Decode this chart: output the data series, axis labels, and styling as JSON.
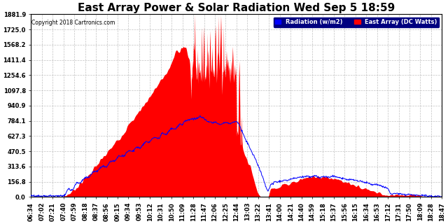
{
  "title": "East Array Power & Solar Radiation Wed Sep 5 18:59",
  "copyright": "Copyright 2018 Cartronics.com",
  "legend_labels": [
    "Radiation (w/m2)",
    "East Array (DC Watts)"
  ],
  "legend_colors": [
    "blue",
    "red"
  ],
  "ylim": [
    0.0,
    1881.9
  ],
  "yticks": [
    0.0,
    156.8,
    313.6,
    470.5,
    627.3,
    784.1,
    940.9,
    1097.8,
    1254.6,
    1411.4,
    1568.2,
    1725.0,
    1881.9
  ],
  "background_color": "#ffffff",
  "plot_bg_color": "#ffffff",
  "grid_color": "#bbbbbb",
  "title_fontsize": 11,
  "tick_fontsize": 6.0,
  "radiation_color": "blue",
  "power_color": "red",
  "xtick_labels": [
    "06:34",
    "07:02",
    "07:21",
    "07:40",
    "07:59",
    "08:18",
    "08:37",
    "08:56",
    "09:15",
    "09:34",
    "09:53",
    "10:12",
    "10:31",
    "10:50",
    "11:09",
    "11:28",
    "11:47",
    "12:06",
    "12:25",
    "12:44",
    "13:03",
    "13:22",
    "13:41",
    "14:00",
    "14:21",
    "14:40",
    "14:59",
    "15:18",
    "15:37",
    "15:56",
    "16:15",
    "16:34",
    "16:53",
    "17:12",
    "17:31",
    "17:50",
    "18:09",
    "18:28",
    "18:47"
  ]
}
